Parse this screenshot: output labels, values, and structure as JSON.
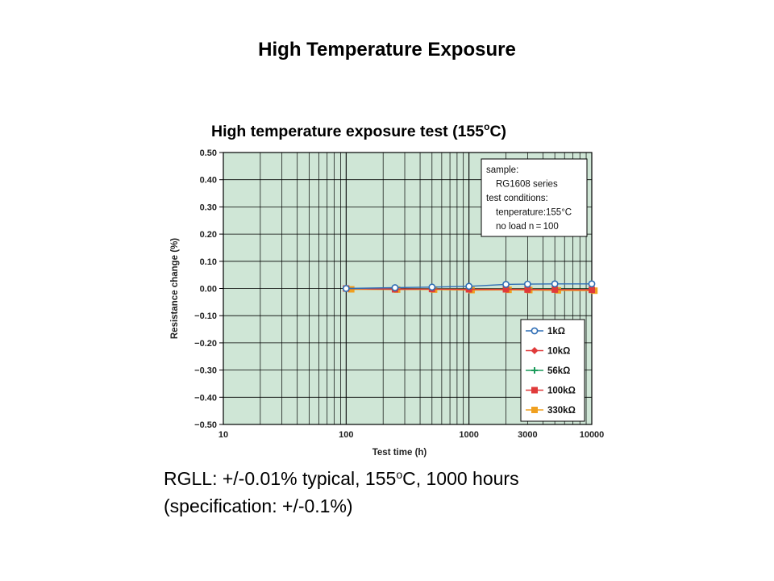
{
  "slide": {
    "title": "High Temperature Exposure",
    "caption_line1_a": "RGLL: +/-0.01% typical, 155",
    "caption_line1_sup": "o",
    "caption_line1_b": "C, 1000 hours",
    "caption_line2": "(specification: +/-0.1%)"
  },
  "chart_data": {
    "type": "line",
    "title_main": "High temperature exposure test (155",
    "title_sup": "o",
    "title_end": "C)",
    "xlabel": "Test time (h)",
    "ylabel": "Resistance change (%)",
    "xscale": "log",
    "xlim": [
      10,
      10000
    ],
    "ylim": [
      -0.5,
      0.5
    ],
    "x_tick_labels": [
      {
        "value": 10,
        "label": "10"
      },
      {
        "value": 100,
        "label": "100"
      },
      {
        "value": 1000,
        "label": "1000"
      },
      {
        "value": 3000,
        "label": "3000"
      },
      {
        "value": 10000,
        "label": "10000"
      }
    ],
    "y_ticks": [
      {
        "value": 0.5,
        "label": "0.50"
      },
      {
        "value": 0.4,
        "label": "0.40"
      },
      {
        "value": 0.3,
        "label": "0.30"
      },
      {
        "value": 0.2,
        "label": "0.20"
      },
      {
        "value": 0.1,
        "label": "0.10"
      },
      {
        "value": 0.0,
        "label": "0.00"
      },
      {
        "value": -0.1,
        "label": "−0.10"
      },
      {
        "value": -0.2,
        "label": "−0.20"
      },
      {
        "value": -0.3,
        "label": "−0.30"
      },
      {
        "value": -0.4,
        "label": "−0.40"
      },
      {
        "value": -0.5,
        "label": "−0.50"
      }
    ],
    "grid": true,
    "plot_background": "#cfe6d6",
    "info_box": {
      "placement": "top-right",
      "lines": [
        "sample:",
        "RG1608 series",
        "test conditions:",
        "tenperature:155°C",
        "no load   n = 100"
      ]
    },
    "legend_placement": "bottom-right",
    "series": [
      {
        "name": "1kΩ",
        "color": "#2f6eb5",
        "marker": "circle-open",
        "x": [
          100,
          250,
          500,
          1000,
          2000,
          3000,
          5000,
          10000
        ],
        "y": [
          0.0,
          0.003,
          0.005,
          0.008,
          0.015,
          0.016,
          0.017,
          0.017
        ]
      },
      {
        "name": "10kΩ",
        "color": "#e03a3a",
        "marker": "diamond",
        "x": [
          100,
          250,
          500,
          1000,
          2000,
          3000,
          5000,
          10000
        ],
        "y": [
          0.0,
          -0.002,
          -0.002,
          -0.003,
          -0.003,
          -0.003,
          -0.004,
          -0.004
        ]
      },
      {
        "name": "56kΩ",
        "color": "#1a9a5a",
        "marker": "plus",
        "x": [
          100,
          250,
          500,
          1000,
          2000,
          3000,
          5000,
          10000
        ],
        "y": [
          0.0,
          -0.002,
          -0.001,
          -0.002,
          -0.002,
          -0.002,
          -0.003,
          -0.003
        ]
      },
      {
        "name": "100kΩ",
        "color": "#e03a3a",
        "marker": "square",
        "x": [
          100,
          250,
          500,
          1000,
          2000,
          3000,
          5000,
          10000
        ],
        "y": [
          0.0,
          -0.003,
          -0.002,
          -0.003,
          -0.003,
          -0.004,
          -0.004,
          -0.005
        ]
      },
      {
        "name": "330kΩ",
        "color": "#f0a020",
        "marker": "square",
        "x": [
          110,
          260,
          520,
          1050,
          2100,
          3100,
          5300,
          10500
        ],
        "y": [
          -0.003,
          -0.004,
          -0.004,
          -0.006,
          -0.005,
          -0.006,
          -0.007,
          -0.008
        ]
      }
    ]
  }
}
